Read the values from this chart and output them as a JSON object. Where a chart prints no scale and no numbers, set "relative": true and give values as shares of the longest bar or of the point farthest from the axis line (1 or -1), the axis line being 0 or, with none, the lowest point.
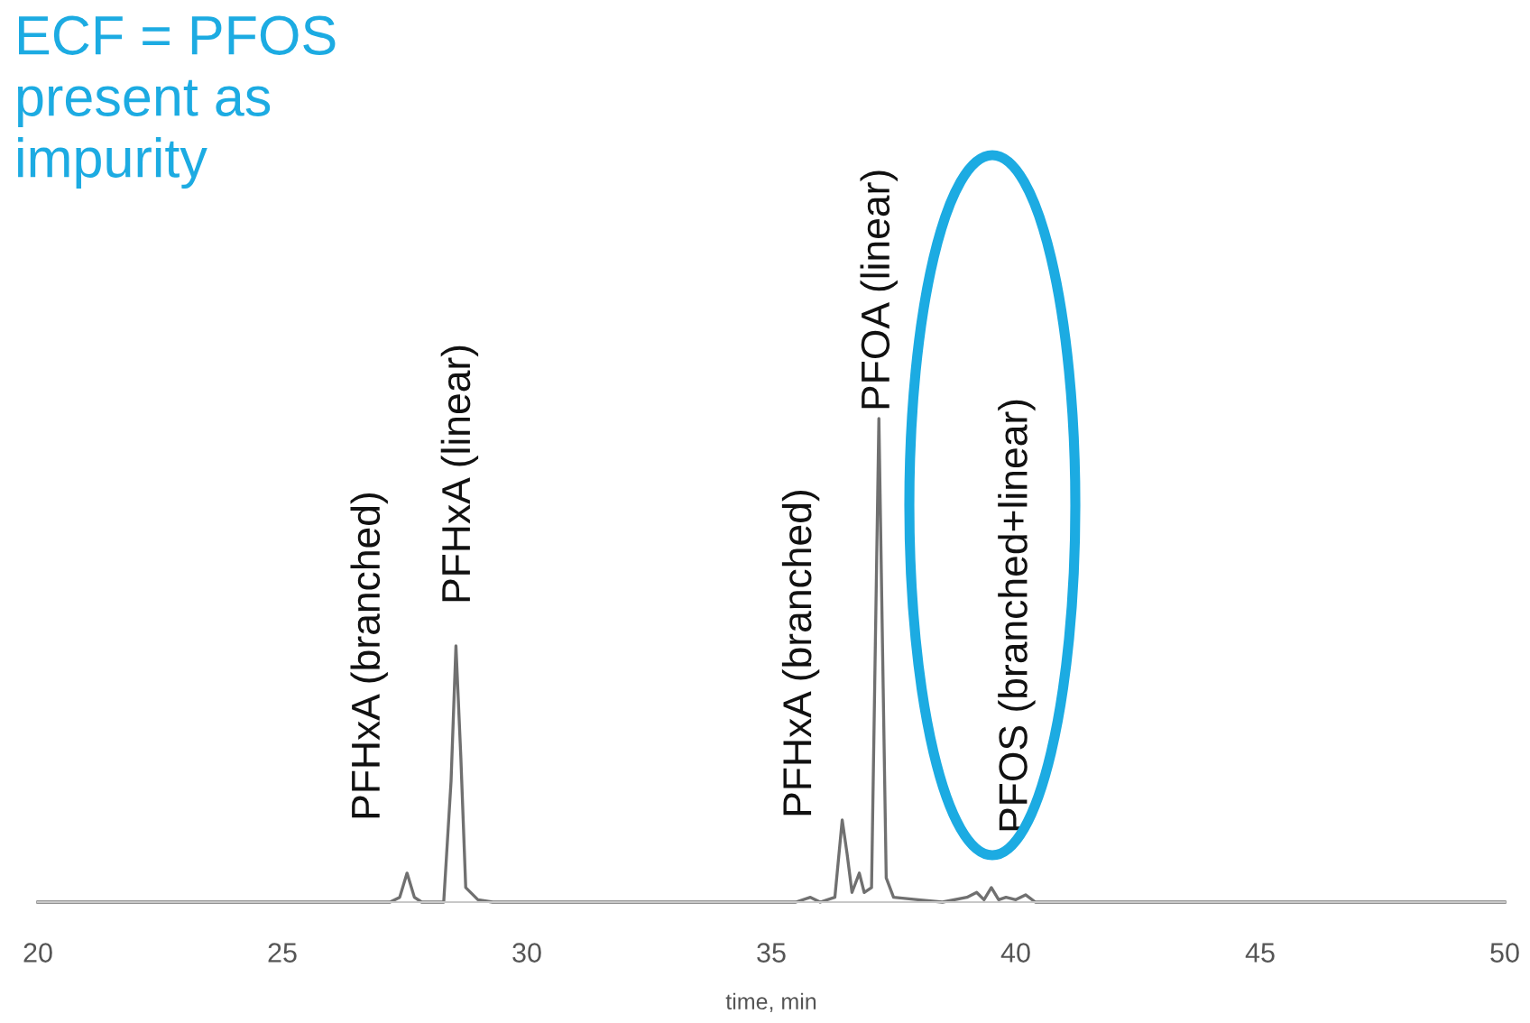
{
  "chart_data": {
    "type": "line",
    "relative": true,
    "xlabel": "time, min",
    "xlim": [
      20,
      50
    ],
    "xticks": [
      20,
      25,
      30,
      35,
      40,
      45,
      50
    ],
    "grid": false,
    "marker": "none",
    "line_style": "solid",
    "series": [
      {
        "color": "#707070",
        "x": [
          20,
          27.2,
          27.4,
          27.55,
          27.7,
          27.85,
          28.3,
          28.45,
          28.55,
          28.65,
          28.75,
          29.0,
          29.3,
          35.5,
          35.8,
          36.0,
          36.3,
          36.45,
          36.55,
          36.65,
          36.8,
          36.9,
          37.05,
          37.2,
          37.35,
          37.5,
          38.0,
          38.5,
          39.0,
          39.2,
          39.35,
          39.5,
          39.65,
          39.8,
          40.0,
          40.2,
          40.4,
          50
        ],
        "values": [
          0,
          0,
          0.01,
          0.06,
          0.01,
          0,
          0,
          0.25,
          0.53,
          0.3,
          0.03,
          0.005,
          0,
          0,
          0.01,
          0,
          0.01,
          0.17,
          0.1,
          0.02,
          0.06,
          0.02,
          0.03,
          1,
          0.05,
          0.01,
          0.005,
          0,
          0.01,
          0.02,
          0.005,
          0.03,
          0.005,
          0.01,
          0.005,
          0.015,
          0,
          0
        ]
      }
    ],
    "annotations": [
      "ECF = PFOS\npresent as\nimpurity",
      {
        "text": "PFHxA (branched)",
        "x": 27.55,
        "y": 0.06
      },
      {
        "text": "PFHxA (linear)",
        "x": 28.55,
        "y": 0.53
      },
      {
        "text": "PFHxA (branched)",
        "x": 36.45,
        "y": 0.17
      },
      {
        "text": "PFOA (linear)",
        "x": 37.2,
        "y": 1
      },
      {
        "text": "PFOS (branched+linear)",
        "x": 39.5,
        "y": 0.03
      }
    ]
  }
}
